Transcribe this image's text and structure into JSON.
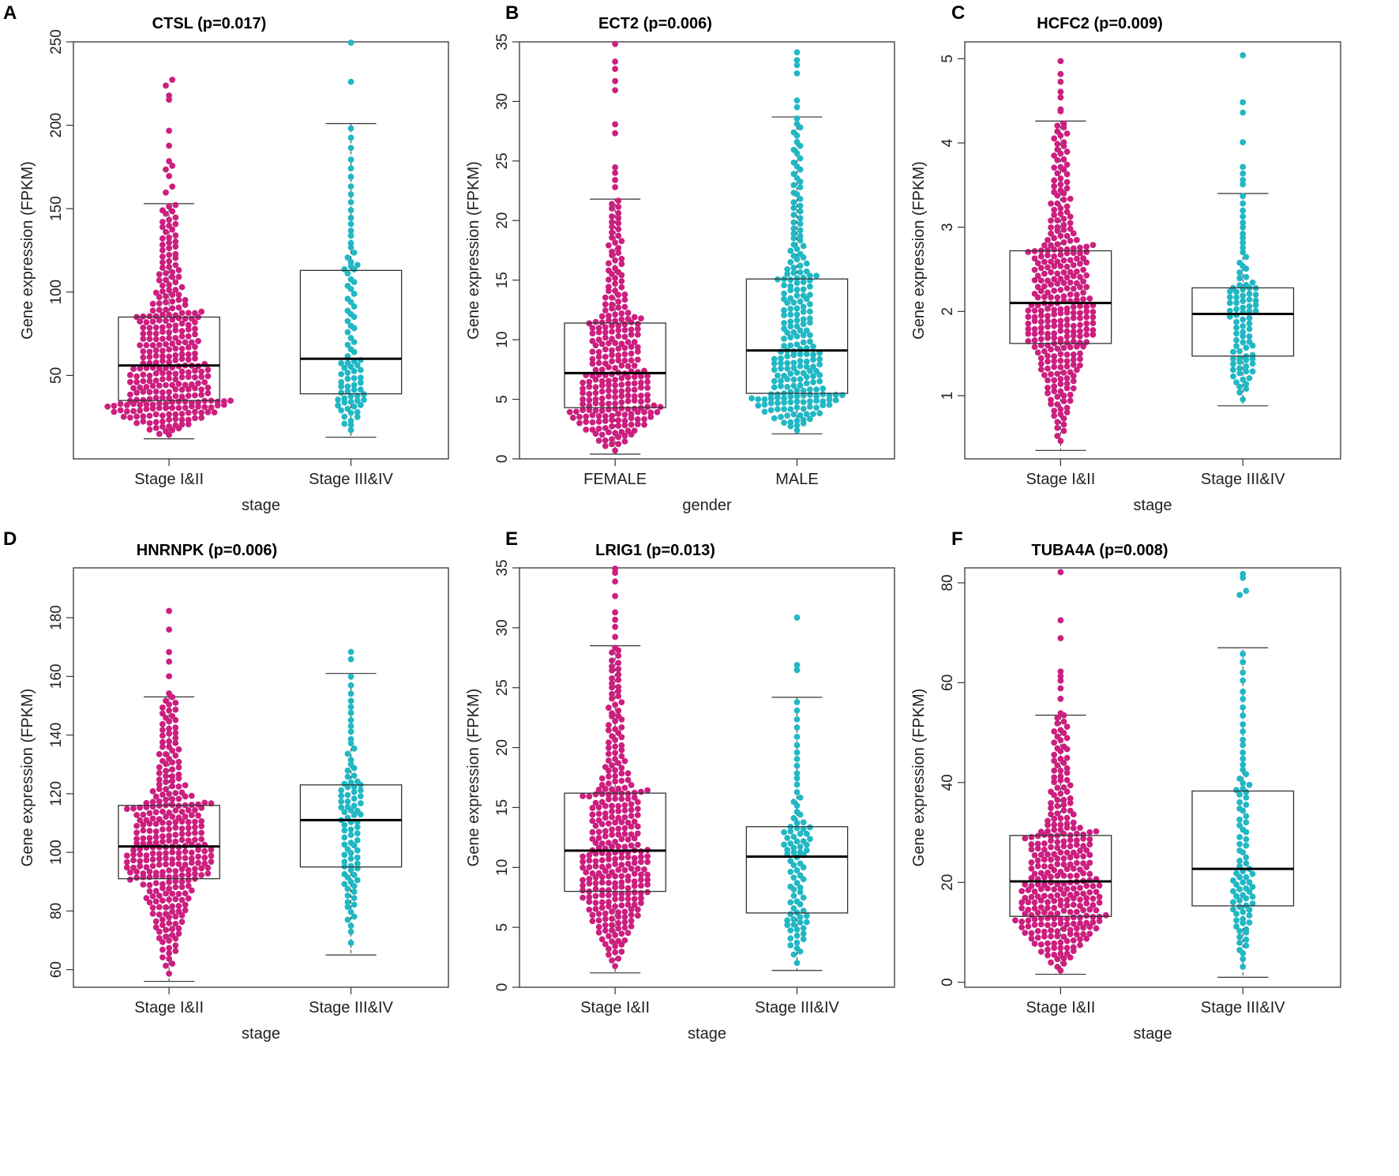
{
  "colors": {
    "group1": "#cc1f7f",
    "group2": "#21b8c4",
    "median": "#000000",
    "box": "#333333"
  },
  "chart_data": [
    {
      "panel": "A",
      "type": "box-beeswarm",
      "title": "CTSL (p=0.017)",
      "xlabel": "stage",
      "ylabel": "Gene expression (FPKM)",
      "categories": [
        "Stage I&II",
        "Stage III&IV"
      ],
      "ylim": [
        0,
        250
      ],
      "yticks": [
        50,
        100,
        150,
        200,
        250
      ],
      "boxes": [
        {
          "min": 12,
          "q1": 35,
          "median": 56,
          "q3": 85,
          "max": 153,
          "n": 300,
          "outliers": [
            160,
            163,
            170,
            174,
            176,
            178,
            188,
            197,
            216,
            218,
            224,
            227
          ]
        },
        {
          "min": 13,
          "q1": 39,
          "median": 60,
          "q3": 113,
          "max": 201,
          "n": 90,
          "outliers": [
            226,
            250
          ]
        }
      ]
    },
    {
      "panel": "B",
      "type": "box-beeswarm",
      "title": "ECT2 (p=0.006)",
      "xlabel": "gender",
      "ylabel": "Gene expression (FPKM)",
      "categories": [
        "FEMALE",
        "MALE"
      ],
      "ylim": [
        0,
        35
      ],
      "yticks": [
        0,
        5,
        10,
        15,
        20,
        25,
        30,
        35
      ],
      "boxes": [
        {
          "min": 0.4,
          "q1": 4.3,
          "median": 7.2,
          "q3": 11.4,
          "max": 21.8,
          "n": 260,
          "outliers": [
            22.8,
            23.4,
            24.0,
            24.5,
            27.3,
            28.0,
            30.9,
            31.8,
            32.7,
            33.4,
            34.9
          ]
        },
        {
          "min": 2.1,
          "q1": 5.5,
          "median": 9.1,
          "q3": 15.1,
          "max": 28.7,
          "n": 230,
          "outliers": [
            29.6,
            30.1,
            32.4,
            33.0,
            33.5,
            34.1
          ]
        }
      ]
    },
    {
      "panel": "C",
      "type": "box-beeswarm",
      "title": "HCFC2 (p=0.009)",
      "xlabel": "stage",
      "ylabel": "Gene expression (FPKM)",
      "categories": [
        "Stage I&II",
        "Stage III&IV"
      ],
      "ylim": [
        0.25,
        5.2
      ],
      "yticks": [
        1,
        2,
        3,
        4,
        5
      ],
      "boxes": [
        {
          "min": 0.35,
          "q1": 1.62,
          "median": 2.1,
          "q3": 2.72,
          "max": 4.26,
          "n": 300,
          "outliers": [
            4.38,
            4.4,
            4.53,
            4.62,
            4.72,
            4.82,
            4.96
          ]
        },
        {
          "min": 0.88,
          "q1": 1.47,
          "median": 1.97,
          "q3": 2.28,
          "max": 3.4,
          "n": 90,
          "outliers": [
            3.5,
            3.57,
            3.63,
            3.72,
            4.02,
            4.37,
            4.47,
            5.04
          ]
        }
      ]
    },
    {
      "panel": "D",
      "type": "box-beeswarm",
      "title": "HNRNPK (p=0.006)",
      "xlabel": "stage",
      "ylabel": "Gene expression (FPKM)",
      "categories": [
        "Stage I&II",
        "Stage III&IV"
      ],
      "ylim": [
        54,
        197
      ],
      "yticks": [
        60,
        80,
        100,
        120,
        140,
        160,
        180
      ],
      "boxes": [
        {
          "min": 56,
          "q1": 91,
          "median": 102,
          "q3": 116,
          "max": 153,
          "n": 300,
          "outliers": [
            154,
            160,
            165,
            168,
            176,
            182
          ]
        },
        {
          "min": 65,
          "q1": 95,
          "median": 111,
          "q3": 123,
          "max": 161,
          "n": 90,
          "outliers": [
            166,
            168
          ]
        }
      ]
    },
    {
      "panel": "E",
      "type": "box-beeswarm",
      "title": "LRIG1 (p=0.013)",
      "xlabel": "stage",
      "ylabel": "Gene expression (FPKM)",
      "categories": [
        "Stage I&II",
        "Stage III&IV"
      ],
      "ylim": [
        0,
        35
      ],
      "yticks": [
        0,
        5,
        10,
        15,
        20,
        25,
        30,
        35
      ],
      "boxes": [
        {
          "min": 1.2,
          "q1": 8.0,
          "median": 11.4,
          "q3": 16.2,
          "max": 28.5,
          "n": 300,
          "outliers": [
            29.2,
            30.0,
            30.6,
            31.3,
            32.7,
            33.9,
            34.5,
            34.9
          ]
        },
        {
          "min": 1.4,
          "q1": 6.2,
          "median": 10.9,
          "q3": 13.4,
          "max": 24.2,
          "n": 90,
          "outliers": [
            26.4,
            26.8,
            30.9
          ]
        }
      ]
    },
    {
      "panel": "F",
      "type": "box-beeswarm",
      "title": "TUBA4A (p=0.008)",
      "xlabel": "stage",
      "ylabel": "Gene expression (FPKM)",
      "categories": [
        "Stage I&II",
        "Stage III&IV"
      ],
      "ylim": [
        -1,
        83
      ],
      "yticks": [
        0,
        20,
        40,
        60,
        80
      ],
      "boxes": [
        {
          "min": 1.6,
          "q1": 13.2,
          "median": 20.2,
          "q3": 29.4,
          "max": 53.5,
          "n": 300,
          "outliers": [
            54,
            57,
            59,
            60.5,
            61.5,
            62.3,
            69,
            72.5,
            82
          ]
        },
        {
          "min": 1.0,
          "q1": 15.3,
          "median": 22.7,
          "q3": 38.3,
          "max": 67.0,
          "n": 90,
          "outliers": [
            77.8,
            78.3,
            81,
            82
          ]
        }
      ]
    }
  ]
}
